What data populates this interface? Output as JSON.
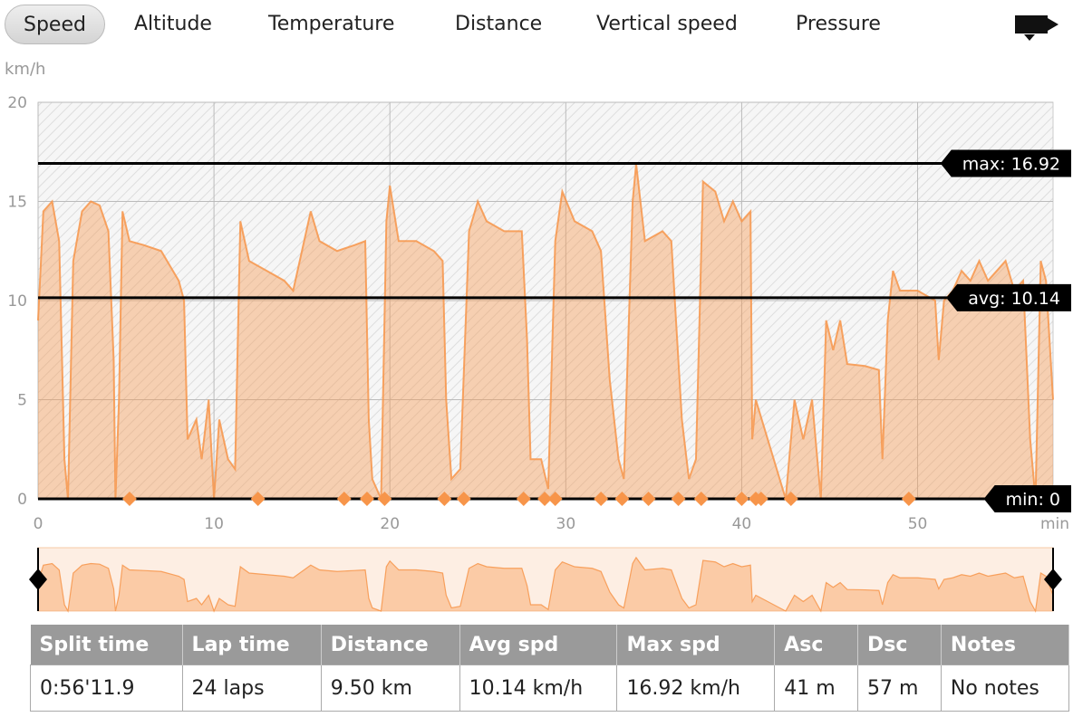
{
  "tabs": [
    "Speed",
    "Altitude",
    "Temperature",
    "Distance",
    "Vertical speed",
    "Pressure"
  ],
  "selected_tab": 0,
  "chart_data": {
    "type": "area",
    "y_label": "km/h",
    "x_label": "min",
    "x": [
      0,
      0.3,
      0.8,
      1.2,
      1.5,
      1.7,
      2,
      2.5,
      3,
      3.5,
      4,
      4.3,
      4.4,
      4.6,
      4.8,
      5.2,
      6,
      7,
      8,
      8.3,
      8.5,
      9,
      9.3,
      9.7,
      10,
      10.3,
      10.8,
      11.2,
      11.5,
      12,
      13,
      14,
      14.5,
      15,
      15.5,
      16,
      17,
      18,
      18.6,
      18.8,
      19,
      19.5,
      19.8,
      20,
      20.5,
      21.5,
      22.5,
      23,
      23.2,
      23.5,
      24,
      24.5,
      25,
      25.5,
      26.5,
      27.5,
      27.8,
      28,
      28.6,
      29,
      29.4,
      29.8,
      30.5,
      31.5,
      32,
      32.5,
      33,
      33.3,
      33.8,
      34,
      34.5,
      35.5,
      36,
      36.6,
      37,
      37.4,
      37.8,
      38.5,
      39,
      39.5,
      40,
      40.5,
      40.6,
      40.8,
      42.5,
      43,
      43.5,
      44,
      44.5,
      44.8,
      45.2,
      45.6,
      46,
      47,
      47.8,
      48,
      48.3,
      48.6,
      49,
      50,
      51,
      51.2,
      51.5,
      52,
      52.5,
      53,
      53.5,
      54,
      54.5,
      55,
      55.5,
      56,
      56.4,
      56.7,
      57,
      57.3,
      57.7
    ],
    "series": [
      {
        "name": "Speed",
        "color": "#f7954a",
        "values": [
          9,
          14.5,
          15,
          13,
          2,
          0,
          12,
          14.5,
          15,
          14.8,
          13.5,
          7,
          0,
          5,
          14.5,
          13,
          12.8,
          12.5,
          11,
          10,
          3,
          4,
          2,
          5,
          0,
          4,
          2,
          1.5,
          14,
          12,
          11.5,
          11,
          10.5,
          12.5,
          14.5,
          13,
          12.5,
          12.8,
          13,
          4,
          1,
          0,
          14,
          15.8,
          13,
          13,
          12.5,
          12,
          5,
          1,
          1.5,
          13.5,
          15,
          14,
          13.5,
          13.5,
          8,
          2,
          2,
          0.5,
          13,
          15.5,
          14,
          13.5,
          12.5,
          6,
          2,
          1,
          15,
          16.9,
          13,
          13.5,
          13,
          4,
          1,
          2,
          16,
          15.5,
          14,
          15,
          14,
          14.5,
          3,
          5,
          0,
          5,
          3,
          5,
          0,
          9,
          7.5,
          9,
          6.8,
          6.7,
          6.5,
          2,
          9,
          11.5,
          10.5,
          10.5,
          10,
          7,
          10,
          10.5,
          11.5,
          11,
          12,
          11,
          11.5,
          12,
          10.5,
          11,
          3,
          0,
          12,
          11,
          5
        ]
      }
    ],
    "lap_markers": [
      5.2,
      12.5,
      17.4,
      18.7,
      19.7,
      23.1,
      24.2,
      27.6,
      28.8,
      29.4,
      32,
      33.2,
      34.7,
      36.4,
      37.7,
      40,
      40.8,
      41.1,
      42.8,
      49.5
    ],
    "lap_marker_color": "#f7954a",
    "ref_lines": [
      {
        "label": "max: 16.92",
        "value": 16.92
      },
      {
        "label": "avg: 10.14",
        "value": 10.14
      },
      {
        "label": "min: 0",
        "value": 0
      }
    ],
    "xlim": [
      0,
      57.7
    ],
    "ylim": [
      0,
      20
    ],
    "xticks": [
      0,
      10,
      20,
      30,
      40,
      50
    ],
    "yticks": [
      0,
      5,
      10,
      15,
      20
    ],
    "grid": true
  },
  "table": {
    "headers": [
      "Split time",
      "Lap time",
      "Distance",
      "Avg spd",
      "Max spd",
      "Asc",
      "Dsc",
      "Notes"
    ],
    "rows": [
      [
        "0:56'11.9",
        "24 laps",
        "9.50 km",
        "10.14 km/h",
        "16.92 km/h",
        "41 m",
        "57 m",
        "No notes"
      ]
    ]
  }
}
